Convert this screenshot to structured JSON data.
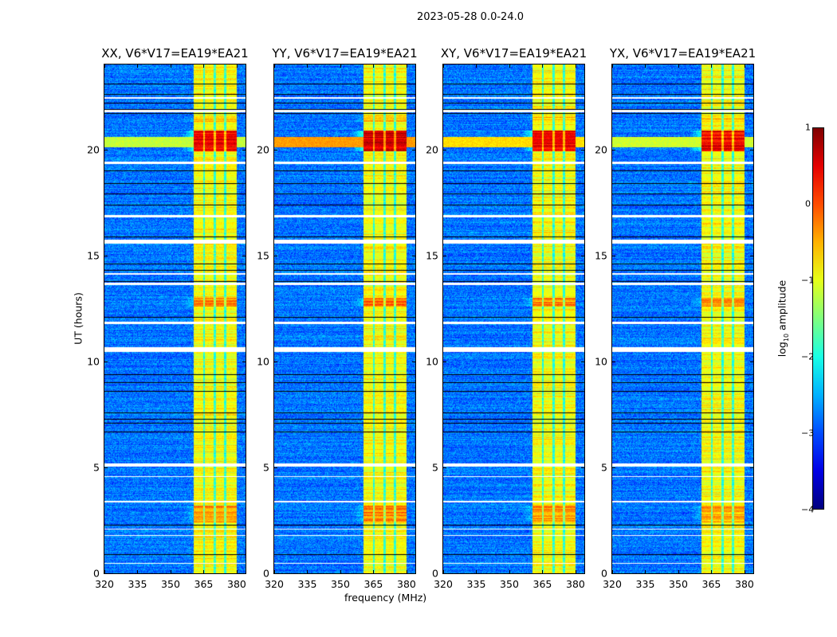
{
  "chart_data": {
    "type": "heatmap",
    "title": "2023-05-28 0.0-24.0",
    "xlabel": "frequency (MHz)",
    "ylabel": "UT (hours)",
    "xlim": [
      320,
      384
    ],
    "ylim": [
      0,
      24
    ],
    "xticks": [
      "320",
      "335",
      "350",
      "365",
      "380"
    ],
    "yticks": [
      "0",
      "5",
      "10",
      "15",
      "20"
    ],
    "colorbar": {
      "label_prefix": "log",
      "label_sub": "10",
      "label_suffix": " amplitude",
      "range": [
        -4,
        1
      ],
      "ticks": [
        "1",
        "0",
        "−1",
        "−2",
        "−3",
        "−4"
      ],
      "colormap": "jet"
    },
    "panels": [
      {
        "title": "XX, V6*V17=EA19*EA21",
        "band_gain": 1.0,
        "wide_rfi": 0.8
      },
      {
        "title": "YY, V6*V17=EA19*EA21",
        "band_gain": 1.15,
        "wide_rfi": 2.2
      },
      {
        "title": "XY, V6*V17=EA19*EA21",
        "band_gain": 1.0,
        "wide_rfi": 1.6
      },
      {
        "title": "YX, V6*V17=EA19*EA21",
        "band_gain": 1.0,
        "wide_rfi": 0.9
      }
    ],
    "background_level": -2.8,
    "rfi_band_mhz": [
      360.4,
      380
    ],
    "rfi_band_level": -0.9,
    "rfi_band_gaps_mhz": [
      365.2,
      370.1,
      374.9
    ],
    "strong_rfi_hours": [
      [
        19.9,
        20.9,
        1.3
      ],
      [
        12.6,
        13.0,
        0.6
      ],
      [
        2.4,
        3.2,
        0.5
      ],
      [
        21.3,
        21.6,
        0.3
      ]
    ],
    "wide_rfi_hours": [
      20.1,
      20.6
    ],
    "flagged_hours": [
      [
        21.75,
        21.85
      ],
      [
        15.55,
        15.75
      ],
      [
        11.75,
        11.85
      ],
      [
        10.45,
        10.65
      ],
      [
        5.05,
        5.2
      ],
      [
        4.55,
        4.6
      ],
      [
        3.35,
        3.4
      ],
      [
        2.05,
        2.1
      ],
      [
        1.75,
        1.8
      ],
      [
        0.45,
        0.5
      ],
      [
        16.8,
        16.9
      ],
      [
        19.3,
        19.4
      ],
      [
        22.4,
        22.45
      ],
      [
        13.6,
        13.7
      ],
      [
        14.1,
        14.15
      ]
    ],
    "gap_hours": [
      23.1,
      22.6,
      22.2,
      21.9,
      21.7,
      19.0,
      18.4,
      17.9,
      17.4,
      15.9,
      14.6,
      14.3,
      13.8,
      12.1,
      9.4,
      9.0,
      8.6,
      7.6,
      7.3,
      7.1,
      6.7,
      2.3,
      0.9
    ]
  }
}
